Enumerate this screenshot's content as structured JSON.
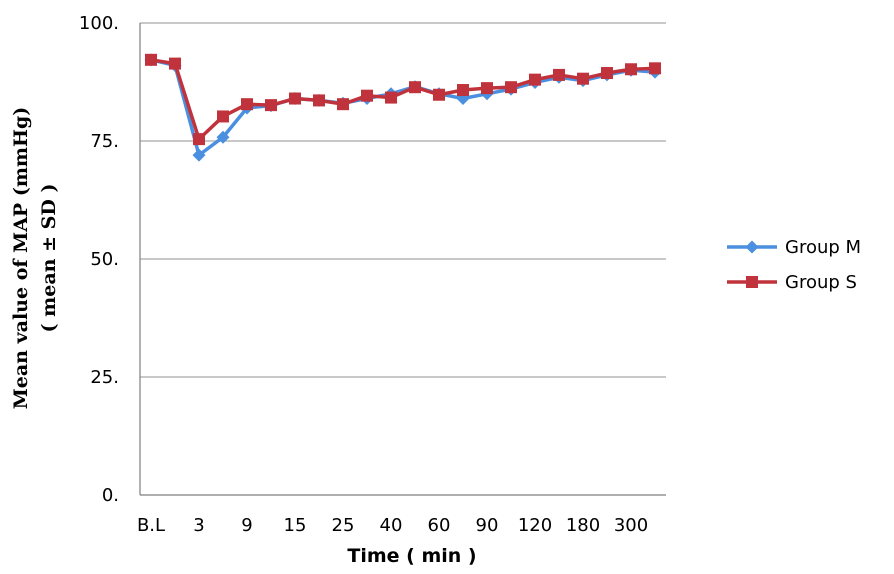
{
  "chart_data": {
    "type": "line",
    "xlabel": "Time ( min )",
    "ylabel_line1": "Mean value of MAP (mmHg)",
    "ylabel_line2": "( mean ± SD )",
    "ylim": [
      0,
      100
    ],
    "yticks": [
      0,
      25,
      50,
      75,
      100
    ],
    "ytick_labels": [
      "0.",
      "25.",
      "50.",
      "75.",
      "100."
    ],
    "x_tick_labels": [
      "B.L",
      "3",
      "9",
      "15",
      "25",
      "40",
      "60",
      "90",
      "120",
      "180",
      "300"
    ],
    "grid": true,
    "legend_position": "right",
    "series": [
      {
        "name": "Group M",
        "color": "#4A8FE0",
        "marker": "diamond",
        "values": [
          92.2,
          91.0,
          72.0,
          75.8,
          82.0,
          82.5,
          84.0,
          83.6,
          83.0,
          84.0,
          85.0,
          86.5,
          85.0,
          84.0,
          85.0,
          86.0,
          87.4,
          88.5,
          87.8,
          89.0,
          90.0,
          89.6
        ]
      },
      {
        "name": "Group S",
        "color": "#C0333C",
        "marker": "square",
        "values": [
          92.2,
          91.4,
          75.4,
          80.2,
          82.8,
          82.6,
          84.0,
          83.6,
          82.8,
          84.6,
          84.2,
          86.4,
          84.8,
          85.8,
          86.2,
          86.4,
          88.0,
          89.0,
          88.2,
          89.4,
          90.2,
          90.4
        ]
      }
    ]
  }
}
